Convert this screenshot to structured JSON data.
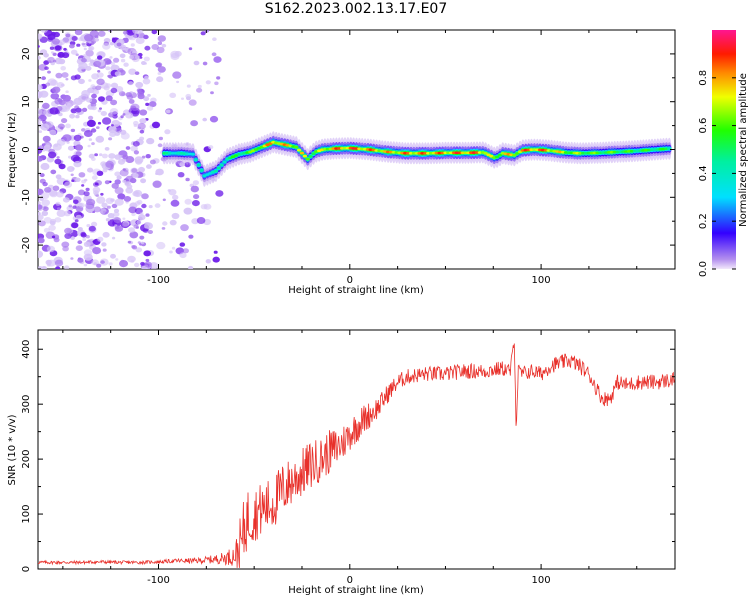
{
  "title": "S162.2023.002.13.17.E07",
  "chart_data": [
    {
      "type": "heatmap",
      "xlabel": "Height of straight line (km)",
      "ylabel": "Frequency (Hz)",
      "xlim": [
        -163,
        170
      ],
      "ylim": [
        -25,
        25
      ],
      "x_ticks": [
        -100,
        0,
        100
      ],
      "y_ticks": [
        -20,
        -10,
        0,
        10,
        20
      ],
      "colorbar": {
        "label": "Normalized spectral amplitude",
        "range": [
          0,
          1
        ],
        "ticks": [
          "0.0",
          "0.2",
          "0.4",
          "0.6",
          "0.8"
        ]
      },
      "ridge": {
        "x": [
          -97,
          -88,
          -82,
          -76,
          -70,
          -64,
          -58,
          -52,
          -46,
          -40,
          -34,
          -28,
          -22,
          -18,
          -14,
          -8,
          0,
          10,
          20,
          30,
          40,
          50,
          60,
          70,
          76,
          80,
          86,
          90,
          96,
          104,
          112,
          120,
          130,
          140,
          150,
          160,
          168
        ],
        "freq": [
          -0.8,
          -0.8,
          -1.0,
          -5.5,
          -4.5,
          -2.0,
          -1.0,
          -0.5,
          0.5,
          1.5,
          1.0,
          0.5,
          -2.0,
          -0.5,
          0.0,
          0.2,
          0.3,
          0.0,
          -0.5,
          -0.8,
          -0.8,
          -0.7,
          -0.7,
          -0.6,
          -1.8,
          -0.8,
          -1.2,
          -0.2,
          0.0,
          -0.2,
          -0.6,
          -0.8,
          -0.7,
          -0.5,
          -0.3,
          0.0,
          0.2
        ],
        "amplitude": [
          0.45,
          0.4,
          0.4,
          0.4,
          0.4,
          0.5,
          0.55,
          0.6,
          0.75,
          0.85,
          0.8,
          0.75,
          0.7,
          0.6,
          0.75,
          0.85,
          0.9,
          0.85,
          0.8,
          0.85,
          0.85,
          0.85,
          0.9,
          0.85,
          0.6,
          0.8,
          0.75,
          0.85,
          0.9,
          0.85,
          0.7,
          0.65,
          0.6,
          0.6,
          0.55,
          0.55,
          0.5
        ]
      }
    },
    {
      "type": "line",
      "xlabel": "Height of straight line (km)",
      "ylabel": "SNR (10 * v/v)",
      "xlim": [
        -163,
        170
      ],
      "ylim": [
        0,
        435
      ],
      "x_ticks": [
        -100,
        0,
        100
      ],
      "y_ticks": [
        0,
        100,
        200,
        300,
        400
      ],
      "series_color": "#e8302a",
      "x": [
        -163,
        -150,
        -140,
        -130,
        -120,
        -110,
        -100,
        -90,
        -80,
        -70,
        -65,
        -60,
        -57,
        -54,
        -50,
        -45,
        -40,
        -35,
        -30,
        -25,
        -20,
        -15,
        -10,
        -5,
        0,
        5,
        10,
        15,
        20,
        25,
        30,
        40,
        50,
        60,
        70,
        80,
        84,
        86,
        87,
        88,
        90,
        95,
        100,
        105,
        110,
        115,
        120,
        125,
        128,
        132,
        136,
        140,
        145,
        150,
        160,
        170
      ],
      "y": [
        12,
        12,
        12,
        13,
        12,
        12,
        13,
        15,
        15,
        18,
        20,
        25,
        40,
        90,
        100,
        110,
        120,
        145,
        160,
        175,
        190,
        200,
        215,
        225,
        245,
        265,
        280,
        295,
        320,
        340,
        350,
        355,
        355,
        360,
        360,
        365,
        360,
        420,
        250,
        360,
        355,
        360,
        355,
        370,
        375,
        380,
        370,
        355,
        335,
        310,
        310,
        340,
        335,
        340,
        340,
        345
      ],
      "spread": [
        3,
        3,
        3,
        3,
        3,
        3,
        3,
        4,
        5,
        8,
        12,
        20,
        60,
        60,
        50,
        50,
        50,
        50,
        45,
        45,
        45,
        40,
        40,
        35,
        30,
        30,
        25,
        20,
        18,
        15,
        14,
        14,
        14,
        14,
        14,
        14,
        14,
        10,
        10,
        14,
        14,
        14,
        14,
        14,
        14,
        14,
        14,
        14,
        14,
        14,
        14,
        14,
        14,
        14,
        14,
        14
      ]
    }
  ]
}
